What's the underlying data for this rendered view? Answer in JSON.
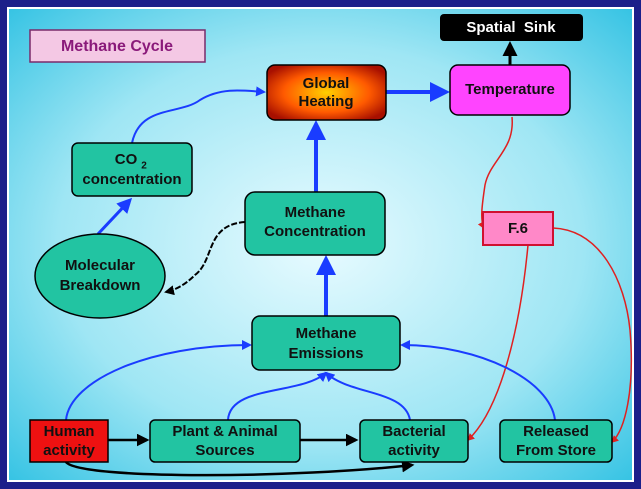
{
  "title": "Methane Cycle",
  "nodes": [
    {
      "id": "global-heating",
      "lines": [
        "Global",
        "Heating"
      ]
    },
    {
      "id": "temperature",
      "lines": [
        "Temperature"
      ]
    },
    {
      "id": "spatial-sink",
      "lines": [
        "Spatial  Sink"
      ]
    },
    {
      "id": "co2",
      "lines": [
        "CO",
        "2",
        "concentration"
      ]
    },
    {
      "id": "methane-concentration",
      "lines": [
        "Methane",
        "Concentration"
      ]
    },
    {
      "id": "f6",
      "lines": [
        "F.6"
      ]
    },
    {
      "id": "molecular-breakdown",
      "lines": [
        "Molecular",
        "Breakdown"
      ]
    },
    {
      "id": "methane-emissions",
      "lines": [
        "Methane",
        "Emissions"
      ]
    },
    {
      "id": "human-activity",
      "lines": [
        "Human",
        "activity"
      ]
    },
    {
      "id": "plant-animal",
      "lines": [
        "Plant & Animal",
        "Sources"
      ]
    },
    {
      "id": "bacterial-activity",
      "lines": [
        "Bacterial",
        "activity"
      ]
    },
    {
      "id": "released-store",
      "lines": [
        "Released",
        "From Store"
      ]
    }
  ]
}
